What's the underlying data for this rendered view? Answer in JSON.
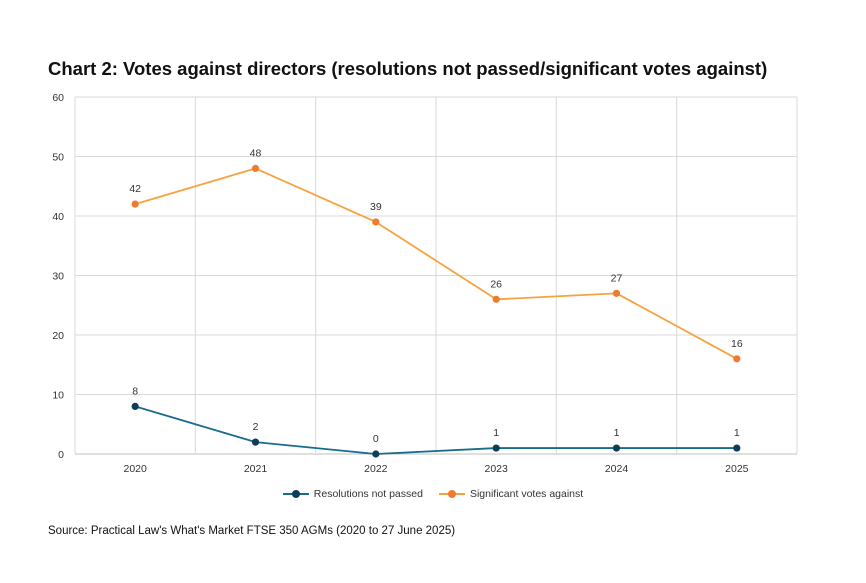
{
  "chart_data": {
    "type": "line",
    "title": "Chart 2: Votes against directors (resolutions not passed/significant votes against)",
    "categories": [
      "2020",
      "2021",
      "2022",
      "2023",
      "2024",
      "2025"
    ],
    "yticks": [
      "0",
      "10",
      "20",
      "30",
      "40",
      "50",
      "60"
    ],
    "ylim": [
      0,
      60
    ],
    "grid": true,
    "legend_position": "bottom",
    "series": [
      {
        "name": "Resolutions not passed",
        "values": [
          8,
          2,
          0,
          1,
          1,
          1
        ],
        "color": "#196b8d",
        "marker_color": "#0e3d57"
      },
      {
        "name": "Significant votes against",
        "values": [
          42,
          48,
          39,
          26,
          27,
          16
        ],
        "color": "#f5a33f",
        "marker_color": "#ef7b2f"
      }
    ],
    "source": "Source: Practical Law's What's Market FTSE 350 AGMs (2020 to 27 June 2025)"
  }
}
